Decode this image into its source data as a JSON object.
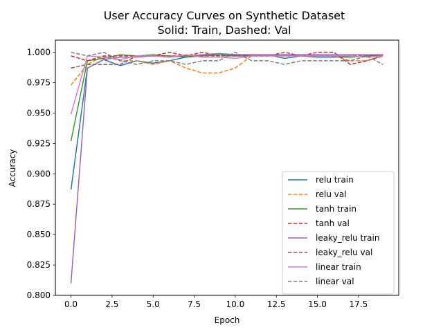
{
  "chart_data": {
    "type": "line",
    "title": "User Accuracy Curves on Synthetic Dataset",
    "subtitle": "Solid: Train, Dashed: Val",
    "xlabel": "Epoch",
    "ylabel": "Accuracy",
    "xlim": [
      -0.95,
      19.95
    ],
    "ylim": [
      0.8,
      1.01
    ],
    "xticks": [
      "0.0",
      "2.5",
      "5.0",
      "7.5",
      "10.0",
      "12.5",
      "15.0",
      "17.5"
    ],
    "xtick_values": [
      0,
      2.5,
      5,
      7.5,
      10,
      12.5,
      15,
      17.5
    ],
    "yticks": [
      "0.800",
      "0.825",
      "0.850",
      "0.875",
      "0.900",
      "0.925",
      "0.950",
      "0.975",
      "1.000"
    ],
    "ytick_values": [
      0.8,
      0.825,
      0.85,
      0.875,
      0.9,
      0.925,
      0.95,
      0.975,
      1.0
    ],
    "grid": false,
    "legend_position": "lower right",
    "x": [
      0,
      1,
      2,
      3,
      4,
      5,
      6,
      7,
      8,
      9,
      10,
      11,
      12,
      13,
      14,
      15,
      16,
      17,
      18,
      19
    ],
    "series": [
      {
        "name": "relu train",
        "color": "#1f77b4",
        "dash": "solid",
        "values": [
          0.887,
          0.987,
          0.994,
          0.989,
          0.993,
          0.991,
          0.993,
          0.996,
          0.997,
          0.998,
          0.997,
          0.997,
          0.998,
          0.995,
          0.997,
          0.996,
          0.996,
          0.996,
          0.997,
          0.998
        ]
      },
      {
        "name": "relu val",
        "color": "#ff7f0e",
        "dash": "dashed",
        "values": [
          0.973,
          0.99,
          0.997,
          0.993,
          0.993,
          0.99,
          0.993,
          0.987,
          0.983,
          0.983,
          0.987,
          0.997,
          0.997,
          0.997,
          0.997,
          0.997,
          0.997,
          0.993,
          0.993,
          0.997
        ]
      },
      {
        "name": "tanh train",
        "color": "#2ca02c",
        "dash": "solid",
        "values": [
          0.927,
          0.993,
          0.995,
          0.998,
          0.997,
          0.998,
          0.997,
          0.996,
          0.997,
          0.998,
          0.998,
          0.998,
          0.997,
          0.998,
          0.997,
          0.997,
          0.997,
          0.996,
          0.997,
          0.997
        ]
      },
      {
        "name": "tanh val",
        "color": "#d62728",
        "dash": "dashed",
        "values": [
          0.997,
          0.993,
          0.997,
          0.997,
          0.997,
          0.997,
          1.0,
          0.997,
          1.0,
          0.997,
          0.997,
          0.997,
          0.997,
          1.0,
          0.997,
          1.0,
          1.0,
          0.99,
          0.993,
          0.997
        ]
      },
      {
        "name": "leaky_relu train",
        "color": "#9467bd",
        "dash": "solid",
        "values": [
          0.81,
          0.987,
          0.994,
          0.996,
          0.996,
          0.997,
          0.996,
          0.997,
          0.998,
          0.999,
          0.998,
          0.998,
          0.998,
          0.998,
          0.998,
          0.998,
          0.998,
          0.998,
          0.998,
          0.998
        ]
      },
      {
        "name": "leaky_relu val",
        "color": "#8c564b",
        "dash": "dashed",
        "values": [
          0.987,
          0.99,
          0.99,
          0.99,
          0.997,
          0.997,
          0.997,
          0.997,
          0.997,
          0.997,
          0.997,
          0.997,
          0.997,
          0.997,
          0.997,
          0.997,
          0.997,
          0.997,
          0.997,
          0.997
        ]
      },
      {
        "name": "linear train",
        "color": "#e377c2",
        "dash": "solid",
        "values": [
          0.949,
          0.997,
          0.996,
          0.994,
          0.997,
          0.997,
          0.996,
          0.998,
          0.996,
          0.996,
          0.995,
          0.997,
          0.997,
          0.997,
          0.997,
          0.997,
          0.997,
          0.997,
          0.996,
          0.997
        ]
      },
      {
        "name": "linear val",
        "color": "#7f7f7f",
        "dash": "dashed",
        "values": [
          1.0,
          0.997,
          1.0,
          0.993,
          0.99,
          0.993,
          0.993,
          0.99,
          0.993,
          0.993,
          1.0,
          0.993,
          0.993,
          0.99,
          0.993,
          0.993,
          0.993,
          0.993,
          0.997,
          0.99
        ]
      }
    ]
  }
}
